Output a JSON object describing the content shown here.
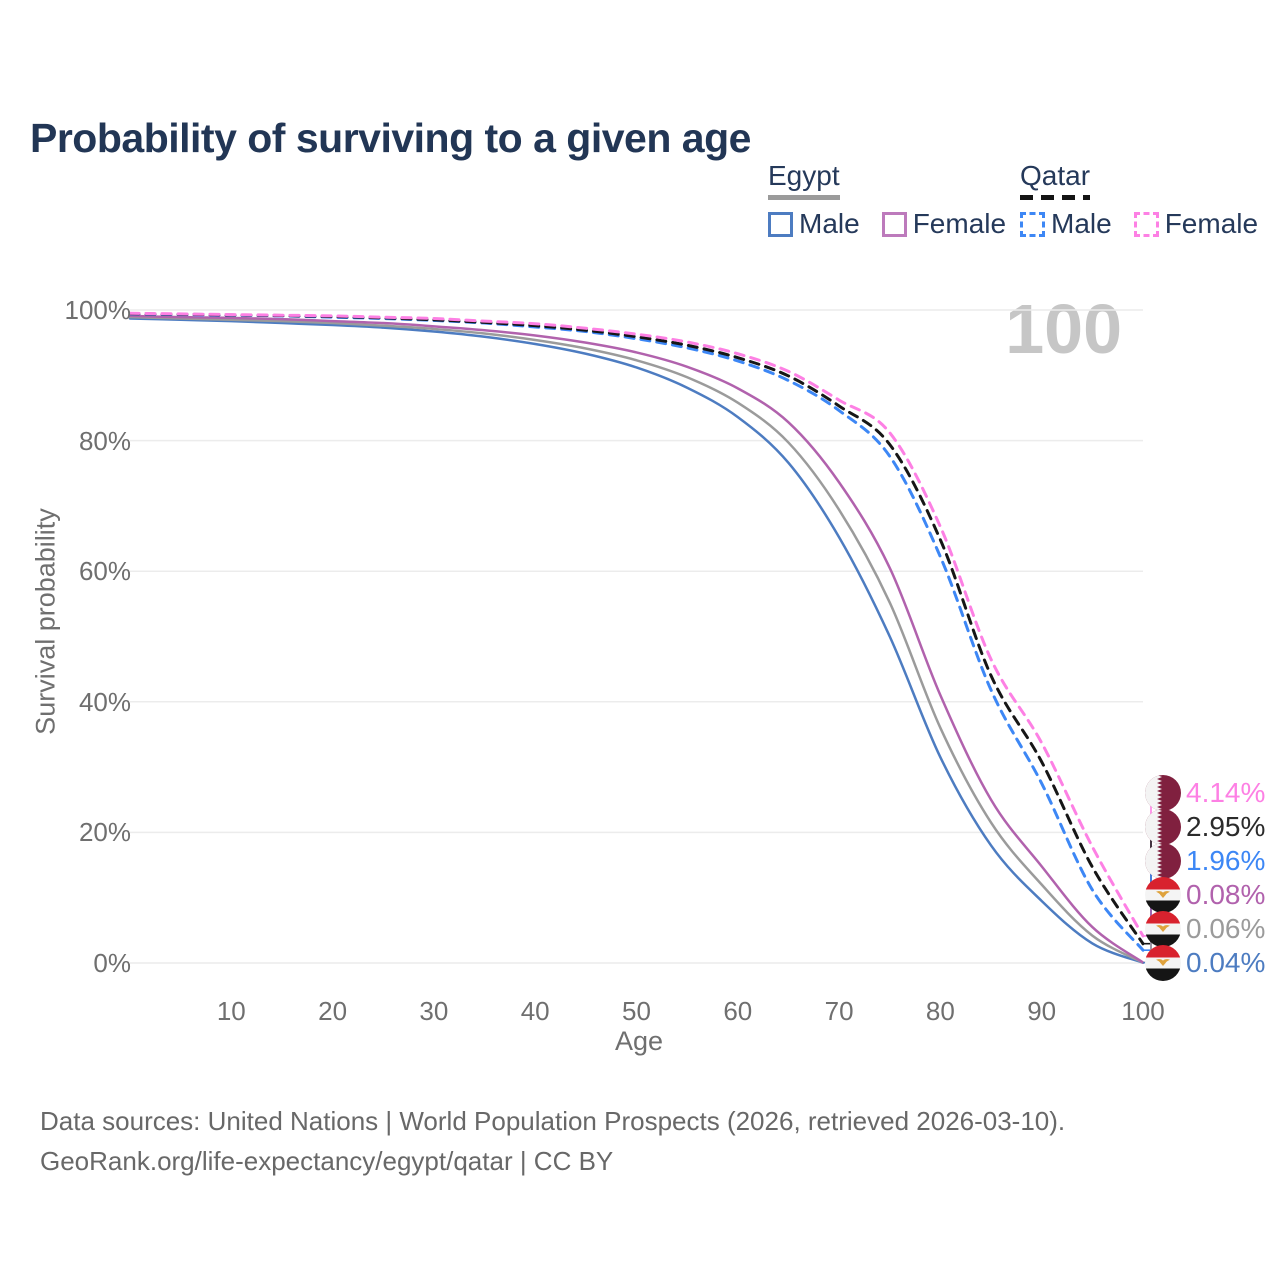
{
  "title": "Probability of surviving to a given age",
  "watermark": "100",
  "legend": {
    "groups": [
      {
        "label": "Egypt",
        "style": "solid",
        "items": [
          {
            "label": "Male"
          },
          {
            "label": "Female"
          }
        ]
      },
      {
        "label": "Qatar",
        "style": "dashed",
        "items": [
          {
            "label": "Male"
          },
          {
            "label": "Female"
          }
        ]
      }
    ]
  },
  "axes": {
    "x_label": "Age",
    "y_label": "Survival probability",
    "x_ticks": [
      "10",
      "20",
      "30",
      "40",
      "50",
      "60",
      "70",
      "80",
      "90",
      "100"
    ],
    "y_ticks": [
      "100%",
      "80%",
      "60%",
      "40%",
      "20%",
      "0%"
    ]
  },
  "chart_data": {
    "type": "line",
    "title": "Probability of surviving to a given age",
    "xlabel": "Age",
    "ylabel": "Survival probability",
    "xlim": [
      0,
      100
    ],
    "ylim": [
      0,
      100
    ],
    "grid": "horizontal",
    "legend_position": "top-right",
    "x": [
      0,
      5,
      10,
      15,
      20,
      25,
      30,
      35,
      40,
      45,
      50,
      55,
      60,
      65,
      70,
      75,
      80,
      85,
      90,
      95,
      100
    ],
    "series": [
      {
        "name": "Egypt Male",
        "country": "Egypt",
        "sex": "Male",
        "line": "solid",
        "color": "#4d7cc1",
        "width": 2.5,
        "values": [
          98.7,
          98.5,
          98.3,
          98.0,
          97.7,
          97.3,
          96.7,
          95.9,
          94.8,
          93.3,
          91.2,
          88.1,
          83.6,
          76.6,
          65.2,
          50.0,
          31.5,
          18.0,
          9.5,
          3.0,
          0.04
        ]
      },
      {
        "name": "Egypt Both sexes",
        "country": "Egypt",
        "sex": "Both sexes",
        "line": "solid",
        "color": "#9b9b9b",
        "width": 2.5,
        "values": [
          98.9,
          98.7,
          98.5,
          98.3,
          98.0,
          97.6,
          97.1,
          96.4,
          95.4,
          94.1,
          92.3,
          89.7,
          85.8,
          79.7,
          69.4,
          55.2,
          36.0,
          21.5,
          12.0,
          4.2,
          0.06
        ]
      },
      {
        "name": "Egypt Female",
        "country": "Egypt",
        "sex": "Female",
        "line": "solid",
        "color": "#b162ad",
        "width": 2.5,
        "values": [
          99.1,
          98.9,
          98.8,
          98.6,
          98.3,
          98.0,
          97.5,
          96.9,
          96.1,
          95.0,
          93.5,
          91.3,
          88.0,
          82.8,
          73.6,
          60.5,
          41.0,
          25.0,
          14.8,
          5.5,
          0.08
        ]
      },
      {
        "name": "Qatar Male",
        "country": "Qatar",
        "sex": "Male",
        "line": "dashed",
        "color": "#3d87f5",
        "width": 3,
        "values": [
          99.4,
          99.3,
          99.2,
          99.1,
          98.9,
          98.7,
          98.4,
          98.0,
          97.4,
          96.7,
          95.6,
          94.2,
          92.2,
          89.2,
          84.6,
          77.6,
          62.2,
          41.8,
          27.5,
          11.2,
          1.96
        ]
      },
      {
        "name": "Qatar Both sexes",
        "country": "Qatar",
        "sex": "Both sexes",
        "line": "dashed",
        "color": "#161616",
        "width": 3,
        "values": [
          99.45,
          99.35,
          99.25,
          99.15,
          99.0,
          98.8,
          98.5,
          98.1,
          97.6,
          96.9,
          95.9,
          94.6,
          92.7,
          89.9,
          85.3,
          79.4,
          64.8,
          44.0,
          30.8,
          14.7,
          2.95
        ]
      },
      {
        "name": "Qatar Female",
        "country": "Qatar",
        "sex": "Female",
        "line": "dashed",
        "color": "#fd80e4",
        "width": 3,
        "values": [
          99.5,
          99.4,
          99.3,
          99.2,
          99.1,
          98.9,
          98.7,
          98.3,
          97.9,
          97.2,
          96.3,
          95.1,
          93.3,
          90.6,
          86.2,
          81.2,
          66.8,
          46.5,
          33.7,
          17.8,
          4.14
        ]
      }
    ]
  },
  "end_labels": [
    {
      "text": "4.14%",
      "color": "#fd80e4",
      "flag": "qatar",
      "series_index": 5
    },
    {
      "text": "2.95%",
      "color": "#2b2b2b",
      "flag": "qatar",
      "series_index": 4
    },
    {
      "text": "1.96%",
      "color": "#3d87f5",
      "flag": "qatar",
      "series_index": 3
    },
    {
      "text": "0.08%",
      "color": "#b162ad",
      "flag": "egypt",
      "series_index": 2
    },
    {
      "text": "0.06%",
      "color": "#9b9b9b",
      "flag": "egypt",
      "series_index": 1
    },
    {
      "text": "0.04%",
      "color": "#4d7cc1",
      "flag": "egypt",
      "series_index": 0
    }
  ],
  "footer": {
    "line1": "Data sources: United Nations | World Population Prospects (2026, retrieved 2026-03-10).",
    "line2": "GeoRank.org/life-expectancy/egypt/qatar | CC BY"
  },
  "colors": {
    "title": "#223655",
    "axis_text": "#6f6f6f",
    "gridline": "#ececec",
    "watermark": "#c6c6c6",
    "egypt_male": "#4d7cc1",
    "egypt_both": "#9b9b9b",
    "egypt_female": "#b162ad",
    "qatar_male": "#3d87f5",
    "qatar_both": "#161616",
    "qatar_female": "#fd80e4",
    "qatar_flag_maroon": "#80203f",
    "egypt_flag_red": "#d8222e",
    "egypt_flag_eagle": "#dfa23c"
  }
}
